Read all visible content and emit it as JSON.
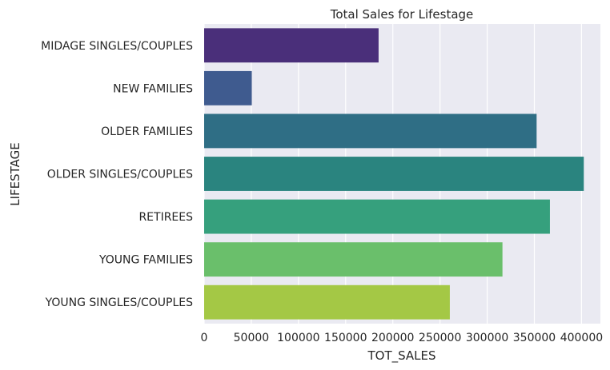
{
  "chart_data": {
    "type": "bar",
    "orientation": "horizontal",
    "title": "Total Sales for Lifestage",
    "xlabel": "TOT_SALES",
    "ylabel": "LIFESTAGE",
    "categories": [
      "MIDAGE SINGLES/COUPLES",
      "NEW FAMILIES",
      "OLDER FAMILIES",
      "OLDER SINGLES/COUPLES",
      "RETIREES",
      "YOUNG FAMILIES",
      "YOUNG SINGLES/COUPLES"
    ],
    "values": [
      184900,
      50500,
      352400,
      402400,
      366500,
      316200,
      260400
    ],
    "colors": [
      "#4a2f7a",
      "#3f5b8f",
      "#2f6e85",
      "#2a847f",
      "#36a07d",
      "#6abf6b",
      "#a4c845"
    ],
    "xlim": [
      0,
      420000
    ],
    "xticks": [
      0,
      50000,
      100000,
      150000,
      200000,
      250000,
      300000,
      350000,
      400000
    ],
    "grid": true,
    "legend": "none"
  }
}
